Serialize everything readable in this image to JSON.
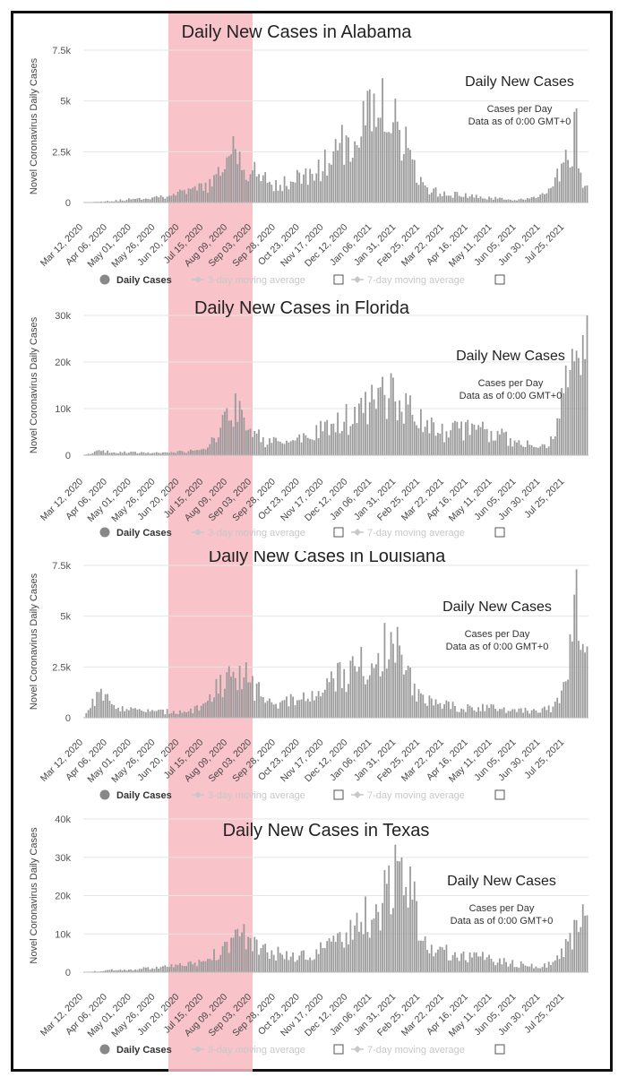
{
  "x_labels": [
    "Mar 12, 2020",
    "Apr 06, 2020",
    "May 01, 2020",
    "May 26, 2020",
    "Jun 20, 2020",
    "Jul 15, 2020",
    "Aug 09, 2020",
    "Sep 03, 2020",
    "Sep 28, 2020",
    "Oct 23, 2020",
    "Nov 17, 2020",
    "Dec 12, 2020",
    "Jan 06, 2021",
    "Jan 31, 2021",
    "Feb 25, 2021",
    "Mar 22, 2021",
    "Apr 16, 2021",
    "May 11, 2021",
    "Jun 05, 2021",
    "Jun 30, 2021",
    "Jul 25, 2021"
  ],
  "highlight_range": [
    "Jun 20, 2020",
    "Sep 03, 2020"
  ],
  "legend": {
    "daily": "Daily Cases",
    "avg3": "3-day moving average",
    "avg7": "7-day moving average"
  },
  "colors": {
    "bar": "#9a9a9a",
    "highlight": "#f7b8bf",
    "grid": "#e6e6e6",
    "text": "#333333",
    "legend_muted": "#c8c8c8"
  },
  "ylabel": "Novel Coronavirus Daily Cases",
  "annot_title": "Daily New Cases",
  "annot_line1": "Cases per Day",
  "annot_line2": "Data as of 0:00 GMT+0",
  "chart_data": [
    {
      "type": "bar",
      "title": "Daily New Cases in Alabama",
      "state": "Alabama",
      "yticks": [
        "0",
        "2.5k",
        "5k",
        "7.5k"
      ],
      "ylim": [
        0,
        7500
      ],
      "anchors": [
        [
          0,
          0
        ],
        [
          4,
          100
        ],
        [
          8,
          250
        ],
        [
          12,
          500
        ],
        [
          15,
          900
        ],
        [
          16.4,
          1600
        ],
        [
          17.5,
          2600
        ],
        [
          18.5,
          2100
        ],
        [
          20,
          1400
        ],
        [
          22,
          900
        ],
        [
          24,
          1000
        ],
        [
          28,
          1700
        ],
        [
          30,
          2600
        ],
        [
          32,
          3600
        ],
        [
          33.5,
          4400
        ],
        [
          34.8,
          5200
        ],
        [
          35.8,
          4800
        ],
        [
          37,
          3600
        ],
        [
          38.5,
          1800
        ],
        [
          40,
          600
        ],
        [
          44,
          350
        ],
        [
          48,
          200
        ],
        [
          50,
          150
        ],
        [
          53,
          200
        ],
        [
          55,
          800
        ],
        [
          56.5,
          1900
        ],
        [
          57.3,
          2800
        ],
        [
          57.7,
          3600
        ],
        [
          58.2,
          1200
        ]
      ]
    },
    {
      "type": "bar",
      "title": "Daily New Cases in Florida",
      "state": "Florida",
      "yticks": [
        "0",
        "10k",
        "20k",
        "30k"
      ],
      "ylim": [
        0,
        30000
      ],
      "anchors": [
        [
          0,
          0
        ],
        [
          1.5,
          800
        ],
        [
          4,
          600
        ],
        [
          8,
          500
        ],
        [
          12,
          800
        ],
        [
          14.5,
          1500
        ],
        [
          16,
          5000
        ],
        [
          16.8,
          9000
        ],
        [
          17.5,
          10500
        ],
        [
          18.5,
          9000
        ],
        [
          20,
          5000
        ],
        [
          21,
          3000
        ],
        [
          24,
          2600
        ],
        [
          27,
          4500
        ],
        [
          30,
          7000
        ],
        [
          33,
          9500
        ],
        [
          35,
          12000
        ],
        [
          36,
          15000
        ],
        [
          37,
          11000
        ],
        [
          38.5,
          8500
        ],
        [
          40,
          6000
        ],
        [
          42,
          5000
        ],
        [
          45,
          5500
        ],
        [
          47,
          5000
        ],
        [
          50,
          3500
        ],
        [
          52,
          2500
        ],
        [
          54,
          2000
        ],
        [
          55,
          4000
        ],
        [
          56,
          10000
        ],
        [
          57,
          17000
        ],
        [
          58,
          23000
        ],
        [
          58.2,
          27000
        ]
      ]
    },
    {
      "type": "bar",
      "title": "Daily New Cases in Louisiana",
      "state": "Louisiana",
      "yticks": [
        "0",
        "2.5k",
        "5k",
        "7.5k"
      ],
      "ylim": [
        0,
        7500
      ],
      "anchors": [
        [
          0,
          0
        ],
        [
          1.5,
          1200
        ],
        [
          3,
          800
        ],
        [
          5,
          400
        ],
        [
          8,
          300
        ],
        [
          12,
          300
        ],
        [
          14,
          500
        ],
        [
          16,
          1600
        ],
        [
          17.5,
          2600
        ],
        [
          18.5,
          2200
        ],
        [
          20,
          1500
        ],
        [
          22,
          800
        ],
        [
          25,
          800
        ],
        [
          28,
          1200
        ],
        [
          30,
          2200
        ],
        [
          33,
          2600
        ],
        [
          35,
          3200
        ],
        [
          36,
          4000
        ],
        [
          37,
          2800
        ],
        [
          39,
          1400
        ],
        [
          41,
          700
        ],
        [
          44,
          500
        ],
        [
          47,
          500
        ],
        [
          50,
          400
        ],
        [
          53,
          300
        ],
        [
          55,
          500
        ],
        [
          56,
          1500
        ],
        [
          57,
          3500
        ],
        [
          57.8,
          5500
        ],
        [
          58.2,
          5000
        ]
      ]
    },
    {
      "type": "bar",
      "title": "Daily New Cases in Texas",
      "state": "Texas",
      "yticks": [
        "0",
        "10k",
        "20k",
        "30k",
        "40k"
      ],
      "ylim": [
        0,
        40000
      ],
      "anchors": [
        [
          0,
          0
        ],
        [
          4,
          700
        ],
        [
          8,
          1000
        ],
        [
          12,
          1800
        ],
        [
          15,
          3500
        ],
        [
          16.5,
          8000
        ],
        [
          17.5,
          10000
        ],
        [
          18.5,
          9500
        ],
        [
          20,
          7500
        ],
        [
          22,
          5500
        ],
        [
          24,
          4000
        ],
        [
          27,
          4500
        ],
        [
          30,
          8000
        ],
        [
          32,
          13000
        ],
        [
          34,
          17000
        ],
        [
          35.5,
          20000
        ],
        [
          36.5,
          23000
        ],
        [
          37.3,
          26000
        ],
        [
          38.5,
          18000
        ],
        [
          40,
          11000
        ],
        [
          41,
          6000
        ],
        [
          43,
          5000
        ],
        [
          46,
          4000
        ],
        [
          50,
          2500
        ],
        [
          53,
          1500
        ],
        [
          55,
          2500
        ],
        [
          56.5,
          6000
        ],
        [
          57.5,
          11000
        ],
        [
          58.2,
          13000
        ]
      ]
    }
  ]
}
